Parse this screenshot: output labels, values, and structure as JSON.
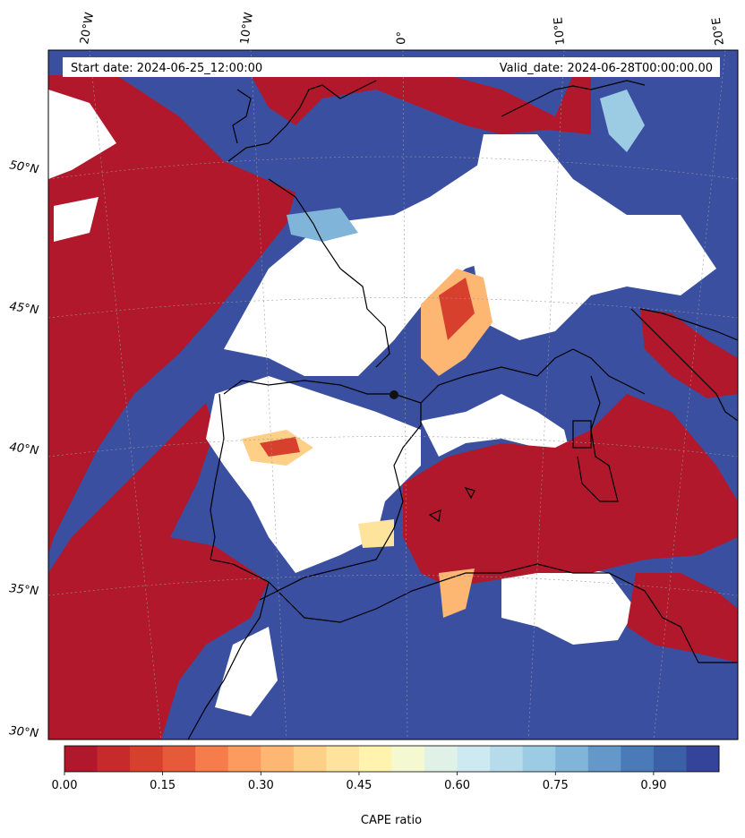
{
  "header": {
    "start_date": "Start date: 2024-06-25_12:00:00",
    "valid_date": "Valid_date: 2024-06-28T00:00:00.00"
  },
  "map": {
    "longitude_labels": [
      "20°W",
      "10°W",
      "0°",
      "10°E",
      "20°E"
    ],
    "latitude_labels": [
      "50°N",
      "45°N",
      "40°N",
      "35°N",
      "30°N"
    ],
    "field_colors": {
      "low": "#b2182b",
      "high": "#3a4fa0",
      "mid": "#ffffbf",
      "missing": "#ffffff",
      "coastline": "#000000"
    }
  },
  "colorbar": {
    "label": "CAPE ratio",
    "ticks": [
      "0.00",
      "0.15",
      "0.30",
      "0.45",
      "0.60",
      "0.75",
      "0.90"
    ],
    "range": [
      0.0,
      1.0
    ],
    "step": 0.05,
    "colors": [
      "#b2182b",
      "#c72a2b",
      "#d8402e",
      "#e65a3a",
      "#f67d4b",
      "#fb9c5e",
      "#fdb773",
      "#fdcf87",
      "#fee39d",
      "#fff3ae",
      "#f4f9d2",
      "#e0f1e8",
      "#cde9f2",
      "#b6dcec",
      "#9ccbe4",
      "#80b4d8",
      "#6398c9",
      "#4a7ab7",
      "#3c60a8",
      "#34449a"
    ]
  }
}
